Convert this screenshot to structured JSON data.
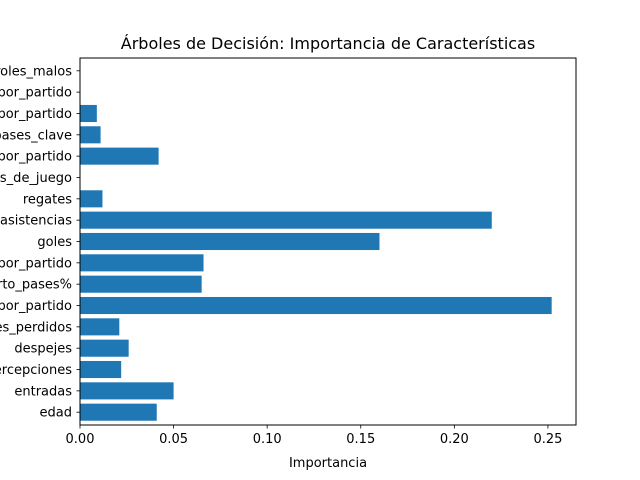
{
  "chart_data": {
    "type": "bar",
    "orientation": "horizontal",
    "title": "Árboles de Decisión: Importancia de Características",
    "xlabel": "Importancia",
    "ylabel": "",
    "xlim": [
      0,
      0.265
    ],
    "xticks": [
      0.0,
      0.05,
      0.1,
      0.15,
      0.2,
      0.25
    ],
    "xtick_labels": [
      "0.00",
      "0.05",
      "0.10",
      "0.15",
      "0.20",
      "0.25"
    ],
    "bar_color": "#1f77b4",
    "grid": false,
    "categories": [
      "edad",
      "entradas",
      "intercepciones",
      "despejes",
      "balones_perdidos",
      "pases_completados_por_partido",
      "porcentaje_de_acierto_pases%",
      "ocasiones_creadas_por_partido",
      "goles",
      "asistencias",
      "regates",
      "minutos_de_juego",
      "disparos_por_partido",
      "pases_clave",
      "faltas_por_partido",
      "amarillas_por_partido",
      "controles_malos"
    ],
    "values": [
      0.041,
      0.05,
      0.022,
      0.026,
      0.021,
      0.252,
      0.065,
      0.066,
      0.16,
      0.22,
      0.012,
      0.0,
      0.042,
      0.011,
      0.009,
      0.0,
      0.0
    ]
  }
}
